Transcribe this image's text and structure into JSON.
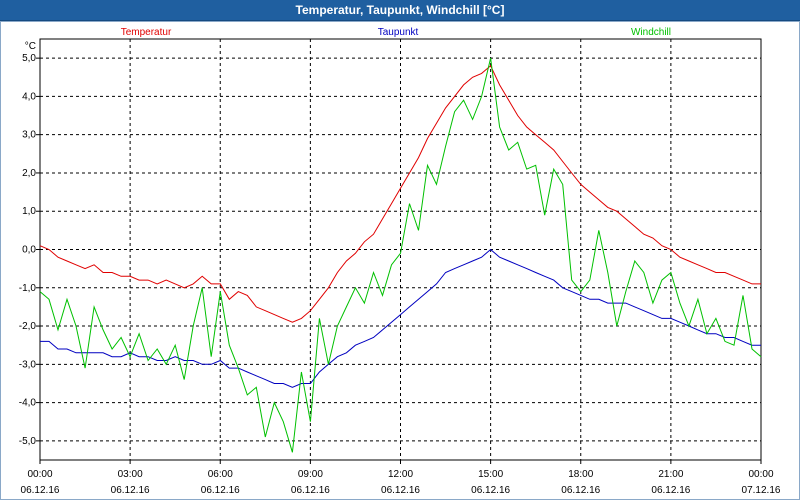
{
  "window": {
    "title": "Temperatur, Taupunkt, Windchill [°C]"
  },
  "colors": {
    "titlebar": "#1f5fa0",
    "grid": "#000000"
  },
  "chart_data": {
    "type": "line",
    "title": "Temperatur, Taupunkt, Windchill [°C]",
    "ylabel": "°C",
    "ylim": [
      -5.5,
      5.5
    ],
    "xlim": [
      0,
      24
    ],
    "yticks": [
      -5,
      -4,
      -3,
      -2,
      -1,
      0,
      1,
      2,
      3,
      4,
      5
    ],
    "ytick_labels": [
      "-5,0",
      "-4,0",
      "-3,0",
      "-2,0",
      "-1,0",
      "0,0",
      "1,0",
      "2,0",
      "3,0",
      "4,0",
      "5,0"
    ],
    "xticks": [
      {
        "x": 0,
        "time": "00:00",
        "date": "06.12.16"
      },
      {
        "x": 3,
        "time": "03:00",
        "date": "06.12.16"
      },
      {
        "x": 6,
        "time": "06:00",
        "date": "06.12.16"
      },
      {
        "x": 9,
        "time": "09:00",
        "date": "06.12.16"
      },
      {
        "x": 12,
        "time": "12:00",
        "date": "06.12.16"
      },
      {
        "x": 15,
        "time": "15:00",
        "date": "06.12.16"
      },
      {
        "x": 18,
        "time": "18:00",
        "date": "06.12.16"
      },
      {
        "x": 21,
        "time": "21:00",
        "date": "06.12.16"
      },
      {
        "x": 24,
        "time": "00:00",
        "date": "07.12.16"
      }
    ],
    "grid": true,
    "series": [
      {
        "name": "Temperatur",
        "color": "#e00000",
        "x": [
          0,
          0.3,
          0.6,
          0.9,
          1.2,
          1.5,
          1.8,
          2.1,
          2.4,
          2.7,
          3.0,
          3.3,
          3.6,
          3.9,
          4.2,
          4.5,
          4.8,
          5.1,
          5.4,
          5.7,
          6.0,
          6.3,
          6.6,
          6.9,
          7.2,
          7.5,
          7.8,
          8.1,
          8.4,
          8.7,
          9.0,
          9.3,
          9.6,
          9.9,
          10.2,
          10.5,
          10.8,
          11.1,
          11.4,
          11.7,
          12.0,
          12.3,
          12.6,
          12.9,
          13.2,
          13.5,
          13.8,
          14.1,
          14.4,
          14.7,
          15.0,
          15.3,
          15.6,
          15.9,
          16.2,
          16.5,
          16.8,
          17.1,
          17.4,
          17.7,
          18.0,
          18.3,
          18.6,
          18.9,
          19.2,
          19.5,
          19.8,
          20.1,
          20.4,
          20.7,
          21.0,
          21.3,
          21.6,
          21.9,
          22.2,
          22.5,
          22.8,
          23.1,
          23.4,
          23.7,
          24.0
        ],
        "values": [
          0.1,
          0.0,
          -0.2,
          -0.3,
          -0.4,
          -0.5,
          -0.4,
          -0.6,
          -0.6,
          -0.7,
          -0.7,
          -0.8,
          -0.8,
          -0.9,
          -0.8,
          -0.9,
          -1.0,
          -0.9,
          -0.7,
          -0.9,
          -0.9,
          -1.3,
          -1.1,
          -1.2,
          -1.5,
          -1.6,
          -1.7,
          -1.8,
          -1.9,
          -1.8,
          -1.6,
          -1.3,
          -1.0,
          -0.6,
          -0.3,
          -0.1,
          0.2,
          0.4,
          0.8,
          1.2,
          1.6,
          2.0,
          2.4,
          2.9,
          3.3,
          3.7,
          4.0,
          4.3,
          4.5,
          4.6,
          4.8,
          4.3,
          3.9,
          3.5,
          3.2,
          3.0,
          2.8,
          2.6,
          2.3,
          2.0,
          1.7,
          1.5,
          1.3,
          1.1,
          1.0,
          0.8,
          0.6,
          0.4,
          0.3,
          0.1,
          0.0,
          -0.2,
          -0.3,
          -0.4,
          -0.5,
          -0.6,
          -0.6,
          -0.7,
          -0.8,
          -0.9,
          -0.9
        ]
      },
      {
        "name": "Taupunkt",
        "color": "#0000c0",
        "x": [
          0,
          0.3,
          0.6,
          0.9,
          1.2,
          1.5,
          1.8,
          2.1,
          2.4,
          2.7,
          3.0,
          3.3,
          3.6,
          3.9,
          4.2,
          4.5,
          4.8,
          5.1,
          5.4,
          5.7,
          6.0,
          6.3,
          6.6,
          6.9,
          7.2,
          7.5,
          7.8,
          8.1,
          8.4,
          8.7,
          9.0,
          9.3,
          9.6,
          9.9,
          10.2,
          10.5,
          10.8,
          11.1,
          11.4,
          11.7,
          12.0,
          12.3,
          12.6,
          12.9,
          13.2,
          13.5,
          13.8,
          14.1,
          14.4,
          14.7,
          15.0,
          15.3,
          15.6,
          15.9,
          16.2,
          16.5,
          16.8,
          17.1,
          17.4,
          17.7,
          18.0,
          18.3,
          18.6,
          18.9,
          19.2,
          19.5,
          19.8,
          20.1,
          20.4,
          20.7,
          21.0,
          21.3,
          21.6,
          21.9,
          22.2,
          22.5,
          22.8,
          23.1,
          23.4,
          23.7,
          24.0
        ],
        "values": [
          -2.4,
          -2.4,
          -2.6,
          -2.6,
          -2.7,
          -2.7,
          -2.7,
          -2.7,
          -2.8,
          -2.8,
          -2.7,
          -2.8,
          -2.8,
          -2.9,
          -2.9,
          -2.8,
          -2.9,
          -2.9,
          -3.0,
          -3.0,
          -2.9,
          -3.1,
          -3.1,
          -3.2,
          -3.3,
          -3.4,
          -3.5,
          -3.5,
          -3.6,
          -3.5,
          -3.5,
          -3.2,
          -3.0,
          -2.8,
          -2.7,
          -2.5,
          -2.4,
          -2.3,
          -2.1,
          -1.9,
          -1.7,
          -1.5,
          -1.3,
          -1.1,
          -0.9,
          -0.6,
          -0.5,
          -0.4,
          -0.3,
          -0.2,
          0.0,
          -0.2,
          -0.3,
          -0.4,
          -0.5,
          -0.6,
          -0.7,
          -0.8,
          -1.0,
          -1.1,
          -1.2,
          -1.3,
          -1.3,
          -1.4,
          -1.4,
          -1.4,
          -1.5,
          -1.6,
          -1.7,
          -1.8,
          -1.8,
          -1.9,
          -2.0,
          -2.1,
          -2.2,
          -2.2,
          -2.3,
          -2.3,
          -2.4,
          -2.5,
          -2.5
        ]
      },
      {
        "name": "Windchill",
        "color": "#00c000",
        "x": [
          0,
          0.3,
          0.6,
          0.9,
          1.2,
          1.5,
          1.8,
          2.1,
          2.4,
          2.7,
          3.0,
          3.3,
          3.6,
          3.9,
          4.2,
          4.5,
          4.8,
          5.1,
          5.4,
          5.7,
          6.0,
          6.3,
          6.6,
          6.9,
          7.2,
          7.5,
          7.8,
          8.1,
          8.4,
          8.7,
          9.0,
          9.3,
          9.6,
          9.9,
          10.2,
          10.5,
          10.8,
          11.1,
          11.4,
          11.7,
          12.0,
          12.3,
          12.6,
          12.9,
          13.2,
          13.5,
          13.8,
          14.1,
          14.4,
          14.7,
          15.0,
          15.3,
          15.6,
          15.9,
          16.2,
          16.5,
          16.8,
          17.1,
          17.4,
          17.7,
          18.0,
          18.3,
          18.6,
          18.9,
          19.2,
          19.5,
          19.8,
          20.1,
          20.4,
          20.7,
          21.0,
          21.3,
          21.6,
          21.9,
          22.2,
          22.5,
          22.8,
          23.1,
          23.4,
          23.7,
          24.0
        ],
        "values": [
          -1.1,
          -1.3,
          -2.1,
          -1.3,
          -2.0,
          -3.1,
          -1.5,
          -2.1,
          -2.6,
          -2.3,
          -2.8,
          -2.2,
          -2.9,
          -2.6,
          -3.0,
          -2.5,
          -3.4,
          -2.0,
          -1.0,
          -2.8,
          -1.1,
          -2.5,
          -3.1,
          -3.8,
          -3.6,
          -4.9,
          -4.0,
          -4.5,
          -5.3,
          -3.2,
          -4.5,
          -1.8,
          -3.0,
          -2.0,
          -1.5,
          -1.0,
          -1.4,
          -0.6,
          -1.2,
          -0.4,
          -0.1,
          1.2,
          0.5,
          2.2,
          1.7,
          2.7,
          3.6,
          3.9,
          3.4,
          4.0,
          5.0,
          3.2,
          2.6,
          2.8,
          2.1,
          2.2,
          0.9,
          2.1,
          1.7,
          -0.8,
          -1.1,
          -0.8,
          0.5,
          -0.6,
          -2.0,
          -1.1,
          -0.3,
          -0.6,
          -1.4,
          -0.8,
          -0.6,
          -1.4,
          -2.0,
          -1.3,
          -2.2,
          -1.8,
          -2.4,
          -2.5,
          -1.2,
          -2.6,
          -2.8
        ]
      }
    ]
  }
}
